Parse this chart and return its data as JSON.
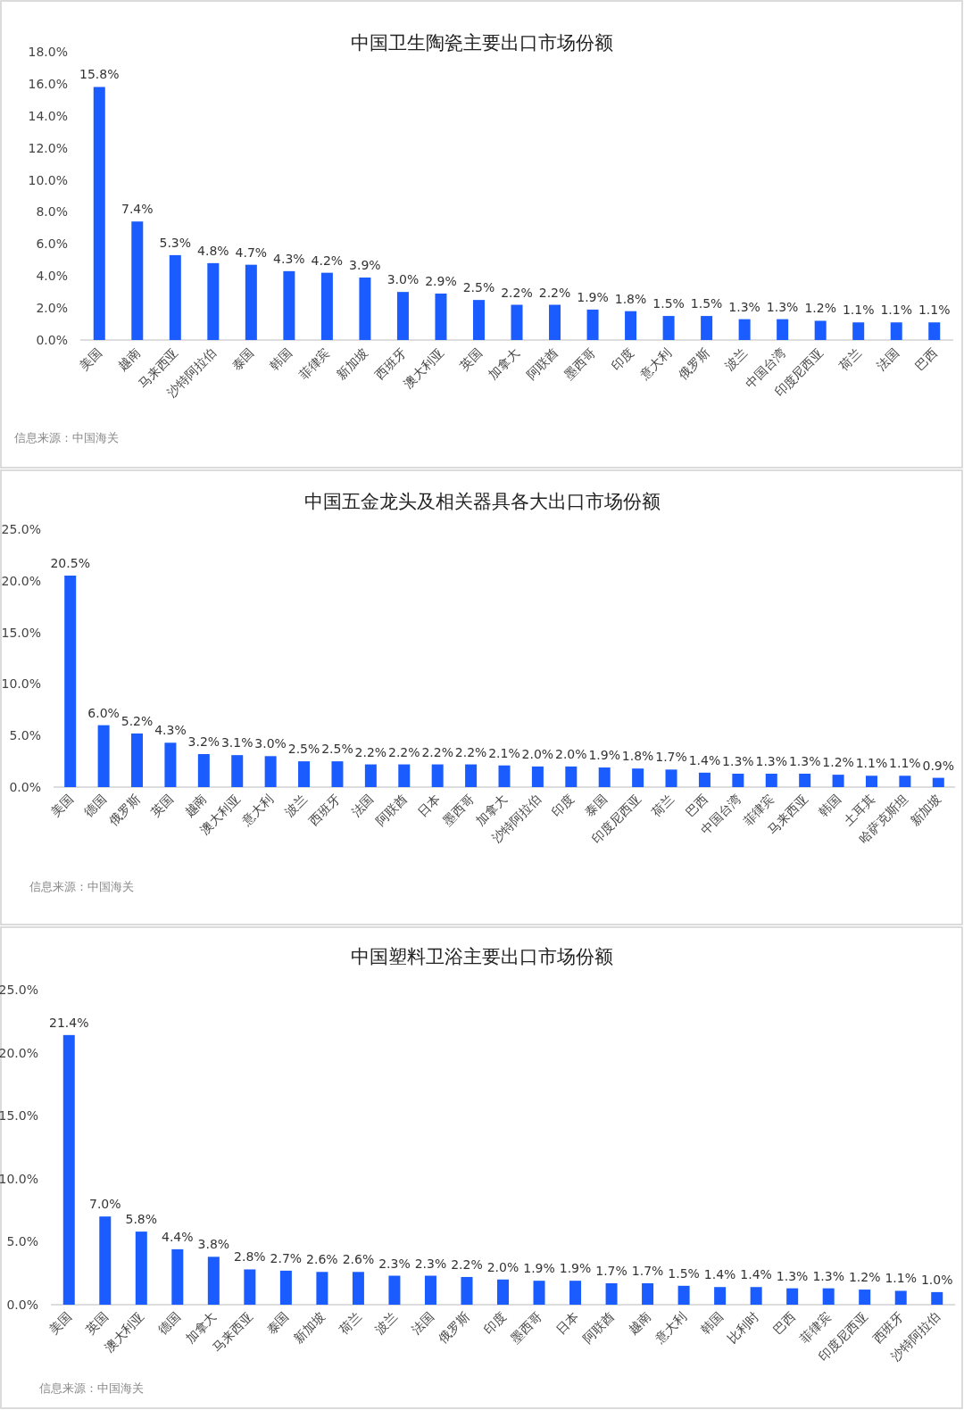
{
  "chart_data": [
    {
      "type": "bar",
      "title": "中国卫生陶瓷主要出口市场份额",
      "color": "#1a5cff",
      "categories": [
        "美国",
        "越南",
        "马来西亚",
        "沙特阿拉伯",
        "泰国",
        "韩国",
        "菲律宾",
        "新加坡",
        "西班牙",
        "澳大利亚",
        "英国",
        "加拿大",
        "阿联酋",
        "墨西哥",
        "印度",
        "意大利",
        "俄罗斯",
        "波兰",
        "中国台湾",
        "印度尼西亚",
        "荷兰",
        "法国",
        "巴西"
      ],
      "values": [
        15.8,
        7.4,
        5.3,
        4.8,
        4.7,
        4.3,
        4.2,
        3.9,
        3.0,
        2.9,
        2.5,
        2.2,
        2.2,
        1.9,
        1.8,
        1.5,
        1.5,
        1.3,
        1.3,
        1.2,
        1.1,
        1.1,
        1.1
      ],
      "value_labels": [
        "15.8%",
        "7.4%",
        "5.3%",
        "4.8%",
        "4.7%",
        "4.3%",
        "4.2%",
        "3.9%",
        "3.0%",
        "2.9%",
        "2.5%",
        "2.2%",
        "2.2%",
        "1.9%",
        "1.8%",
        "1.5%",
        "1.5%",
        "1.3%",
        "1.3%",
        "1.2%",
        "1.1%",
        "1.1%",
        "1.1%"
      ],
      "ylim": [
        0,
        18
      ],
      "yticks": [
        {
          "value": 0,
          "label": "0.0%"
        },
        {
          "value": 2,
          "label": "2.0%"
        },
        {
          "value": 4,
          "label": "4.0%"
        },
        {
          "value": 6,
          "label": "6.0%"
        },
        {
          "value": 8,
          "label": "8.0%"
        },
        {
          "value": 10,
          "label": "10.0%"
        },
        {
          "value": 12,
          "label": "12.0%"
        },
        {
          "value": 14,
          "label": "14.0%"
        },
        {
          "value": 16,
          "label": "16.0%"
        },
        {
          "value": 18,
          "label": "18.0%"
        }
      ],
      "annotations": [
        "信息来源：中国海关"
      ]
    },
    {
      "type": "bar",
      "title": "中国五金龙头及相关器具各大出口市场份额",
      "color": "#1a5cff",
      "categories": [
        "美国",
        "德国",
        "俄罗斯",
        "英国",
        "越南",
        "澳大利亚",
        "意大利",
        "波兰",
        "西班牙",
        "法国",
        "阿联酋",
        "日本",
        "墨西哥",
        "加拿大",
        "沙特阿拉伯",
        "印度",
        "泰国",
        "印度尼西亚",
        "荷兰",
        "巴西",
        "中国台湾",
        "菲律宾",
        "马来西亚",
        "韩国",
        "土耳其",
        "哈萨克斯坦",
        "新加坡"
      ],
      "values": [
        20.5,
        6.0,
        5.2,
        4.3,
        3.2,
        3.1,
        3.0,
        2.5,
        2.5,
        2.2,
        2.2,
        2.2,
        2.2,
        2.1,
        2.0,
        2.0,
        1.9,
        1.8,
        1.7,
        1.4,
        1.3,
        1.3,
        1.3,
        1.2,
        1.1,
        1.1,
        0.9
      ],
      "value_labels": [
        "20.5%",
        "6.0%",
        "5.2%",
        "4.3%",
        "3.2%",
        "3.1%",
        "3.0%",
        "2.5%",
        "2.5%",
        "2.2%",
        "2.2%",
        "2.2%",
        "2.2%",
        "2.1%",
        "2.0%",
        "2.0%",
        "1.9%",
        "1.8%",
        "1.7%",
        "1.4%",
        "1.3%",
        "1.3%",
        "1.3%",
        "1.2%",
        "1.1%",
        "1.1%",
        "0.9%"
      ],
      "ylim": [
        0,
        25
      ],
      "yticks": [
        {
          "value": 0,
          "label": "0.0%"
        },
        {
          "value": 5,
          "label": "5.0%"
        },
        {
          "value": 10,
          "label": "10.0%"
        },
        {
          "value": 15,
          "label": "15.0%"
        },
        {
          "value": 20,
          "label": "20.0%"
        },
        {
          "value": 25,
          "label": "25.0%"
        }
      ],
      "annotations": [
        "信息来源：中国海关"
      ]
    },
    {
      "type": "bar",
      "title": "中国塑料卫浴主要出口市场份额",
      "color": "#1a5cff",
      "categories": [
        "美国",
        "英国",
        "澳大利亚",
        "德国",
        "加拿大",
        "马来西亚",
        "泰国",
        "新加坡",
        "荷兰",
        "波兰",
        "法国",
        "俄罗斯",
        "印度",
        "墨西哥",
        "日本",
        "阿联酋",
        "越南",
        "意大利",
        "韩国",
        "比利时",
        "巴西",
        "菲律宾",
        "印度尼西亚",
        "西班牙",
        "沙特阿拉伯"
      ],
      "values": [
        21.4,
        7.0,
        5.8,
        4.4,
        3.8,
        2.8,
        2.7,
        2.6,
        2.6,
        2.3,
        2.3,
        2.2,
        2.0,
        1.9,
        1.9,
        1.7,
        1.7,
        1.5,
        1.4,
        1.4,
        1.3,
        1.3,
        1.2,
        1.1,
        1.0
      ],
      "value_labels": [
        "21.4%",
        "7.0%",
        "5.8%",
        "4.4%",
        "3.8%",
        "2.8%",
        "2.7%",
        "2.6%",
        "2.6%",
        "2.3%",
        "2.3%",
        "2.2%",
        "2.0%",
        "1.9%",
        "1.9%",
        "1.7%",
        "1.7%",
        "1.5%",
        "1.4%",
        "1.4%",
        "1.3%",
        "1.3%",
        "1.2%",
        "1.1%",
        "1.0%"
      ],
      "ylim": [
        0,
        25
      ],
      "yticks": [
        {
          "value": 0,
          "label": "0.0%"
        },
        {
          "value": 5,
          "label": "5.0%"
        },
        {
          "value": 10,
          "label": "10.0%"
        },
        {
          "value": 15,
          "label": "15.0%"
        },
        {
          "value": 20,
          "label": "20.0%"
        },
        {
          "value": 25,
          "label": "25.0%"
        }
      ],
      "annotations": [
        "信息来源：中国海关"
      ]
    }
  ]
}
